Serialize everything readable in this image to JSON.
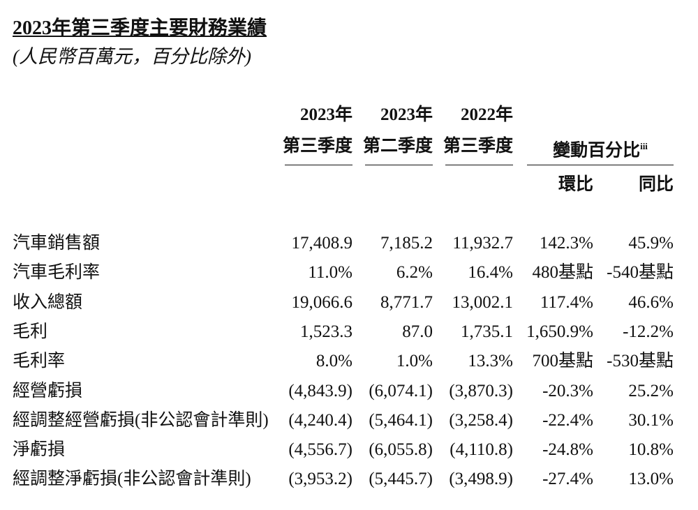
{
  "header": {
    "title": "2023年第三季度主要財務業績",
    "subtitle": "(人民幣百萬元，百分比除外)"
  },
  "table": {
    "columns": [
      {
        "line1": "2023年",
        "line2": "第三季度"
      },
      {
        "line1": "2023年",
        "line2": "第二季度"
      },
      {
        "line1": "2022年",
        "line2": "第三季度"
      }
    ],
    "change_header": {
      "text": "變動百分比",
      "note": "iii"
    },
    "change_columns": [
      "環比",
      "同比"
    ],
    "rows": [
      {
        "label": "汽車銷售額",
        "cells": [
          "17,408.9",
          "7,185.2",
          "11,932.7",
          "142.3%",
          "45.9%"
        ]
      },
      {
        "label": "汽車毛利率",
        "cells": [
          "11.0%",
          "6.2%",
          "16.4%",
          "480基點",
          "-540基點"
        ]
      },
      {
        "label": "收入總額",
        "cells": [
          "19,066.6",
          "8,771.7",
          "13,002.1",
          "117.4%",
          "46.6%"
        ]
      },
      {
        "label": "毛利",
        "cells": [
          "1,523.3",
          "87.0",
          "1,735.1",
          "1,650.9%",
          "-12.2%"
        ]
      },
      {
        "label": "毛利率",
        "cells": [
          "8.0%",
          "1.0%",
          "13.3%",
          "700基點",
          "-530基點"
        ]
      },
      {
        "label": "經營虧損",
        "cells": [
          "(4,843.9)",
          "(6,074.1)",
          "(3,870.3)",
          "-20.3%",
          "25.2%"
        ]
      },
      {
        "label": "經調整經營虧損(非公認會計準則)",
        "cells": [
          "(4,240.4)",
          "(5,464.1)",
          "(3,258.4)",
          "-22.4%",
          "30.1%"
        ]
      },
      {
        "label": "淨虧損",
        "cells": [
          "(4,556.7)",
          "(6,055.8)",
          "(4,110.8)",
          "-24.8%",
          "10.8%"
        ]
      },
      {
        "label": "經調整淨虧損(非公認會計準則)",
        "cells": [
          "(3,953.2)",
          "(5,445.7)",
          "(3,498.9)",
          "-27.4%",
          "13.0%"
        ]
      }
    ]
  }
}
